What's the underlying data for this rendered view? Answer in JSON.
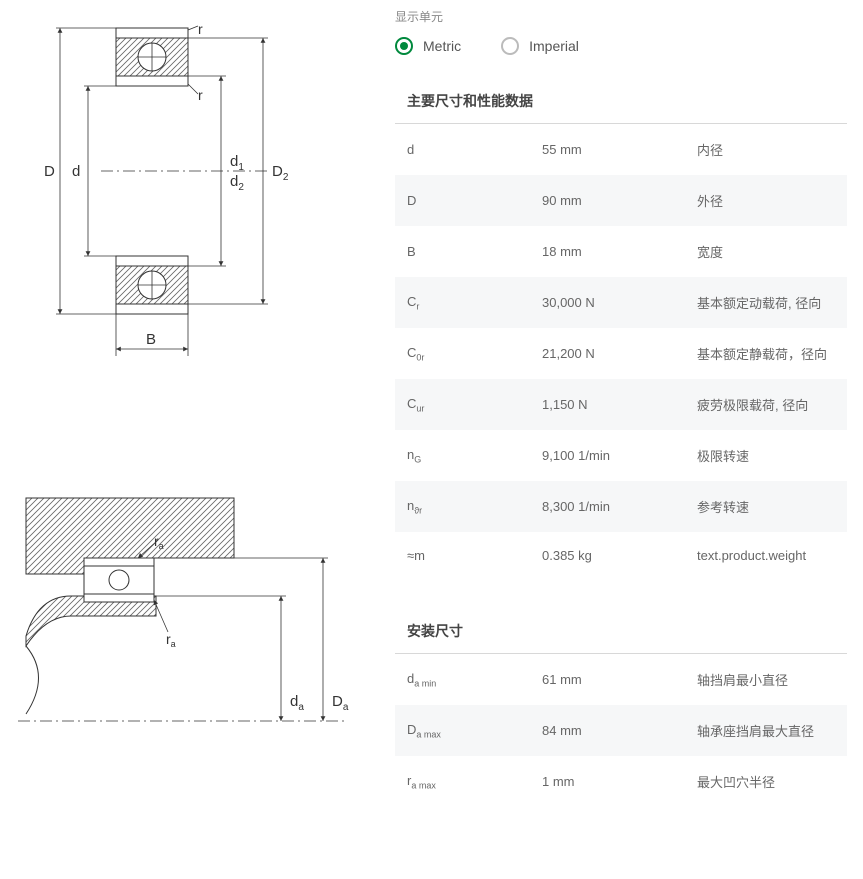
{
  "units": {
    "label": "显示单元",
    "metric": "Metric",
    "imperial": "Imperial",
    "selected": "metric"
  },
  "sections": [
    {
      "title": "主要尺寸和性能数据",
      "rows": [
        {
          "sym": "d",
          "sub": "",
          "val": "55 mm",
          "desc": "内径"
        },
        {
          "sym": "D",
          "sub": "",
          "val": "90 mm",
          "desc": "外径"
        },
        {
          "sym": "B",
          "sub": "",
          "val": "18 mm",
          "desc": "宽度"
        },
        {
          "sym": "C",
          "sub": "r",
          "val": "30,000 N",
          "desc": "基本额定动载荷, 径向"
        },
        {
          "sym": "C",
          "sub": "0r",
          "val": "21,200 N",
          "desc": "基本额定静载荷，径向"
        },
        {
          "sym": "C",
          "sub": "ur",
          "val": "1,150 N",
          "desc": "疲劳极限载荷, 径向"
        },
        {
          "sym": "n",
          "sub": "G",
          "val": "9,100 1/min",
          "desc": "极限转速"
        },
        {
          "sym": "n",
          "sub": "ϑr",
          "val": "8,300 1/min",
          "desc": "参考转速"
        },
        {
          "sym": "≈m",
          "sub": "",
          "val": "0.385 kg",
          "desc": "text.product.weight"
        }
      ]
    },
    {
      "title": "安装尺寸",
      "rows": [
        {
          "sym": "d",
          "sub": "a min",
          "val": "61 mm",
          "desc": "轴挡肩最小直径"
        },
        {
          "sym": "D",
          "sub": "a max",
          "val": "84 mm",
          "desc": "轴承座挡肩最大直径"
        },
        {
          "sym": "r",
          "sub": "a max",
          "val": "1 mm",
          "desc": "最大凹穴半径"
        }
      ]
    }
  ],
  "diagram1": {
    "labels": {
      "D": "D",
      "d": "d",
      "D2": "D",
      "D2sub": "2",
      "d1": "d",
      "d1sub": "1",
      "d2": "d",
      "d2sub": "2",
      "B": "B",
      "r": "r"
    },
    "colors": {
      "stroke": "#333",
      "hatch": "#555",
      "fill_hatch": "#888"
    }
  },
  "diagram2": {
    "labels": {
      "ra": "r",
      "rasub": "a",
      "da": "d",
      "dasub": "a",
      "Da": "D",
      "Dasub": "a"
    }
  }
}
